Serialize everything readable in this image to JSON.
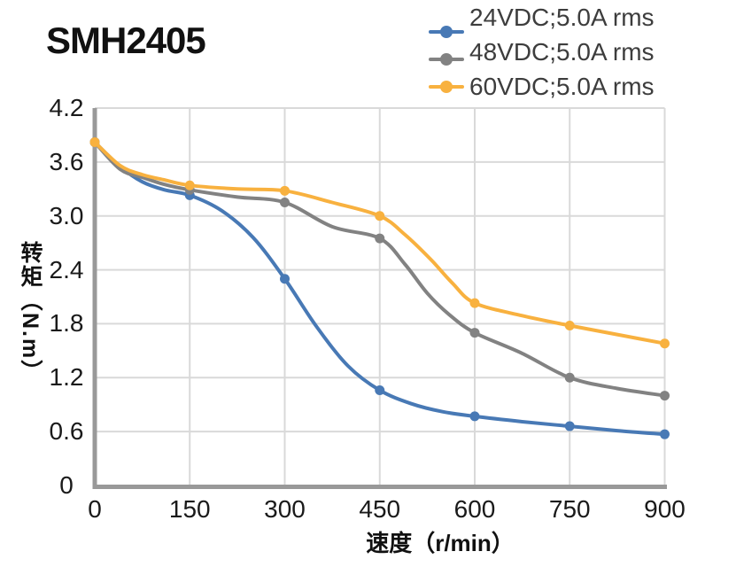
{
  "page": {
    "title": "SMH2405"
  },
  "chart_data": {
    "type": "line",
    "title": "SMH2405",
    "xlabel": "速度（r/min）",
    "ylabel": "转矩（N.m）",
    "xlim": [
      0,
      900
    ],
    "ylim": [
      0,
      4.2
    ],
    "grid": true,
    "legend_position": "top-right",
    "x_ticks": [
      0,
      150,
      300,
      450,
      600,
      750,
      900
    ],
    "y_ticks": [
      "0",
      "0.6",
      "1.2",
      "1.8",
      "2.4",
      "3.0",
      "3.6",
      "4.2"
    ],
    "x": [
      0,
      150,
      300,
      450,
      600,
      750,
      900
    ],
    "series": [
      {
        "name": "24VDC;5.0A rms",
        "color": "#4879B5",
        "values": [
          3.82,
          3.23,
          2.3,
          1.06,
          0.77,
          0.66,
          0.57
        ],
        "curve": [
          [
            0,
            3.82
          ],
          [
            40,
            3.55
          ],
          [
            75,
            3.38
          ],
          [
            110,
            3.29
          ],
          [
            150,
            3.23
          ],
          [
            200,
            3.06
          ],
          [
            250,
            2.76
          ],
          [
            300,
            2.3
          ],
          [
            350,
            1.77
          ],
          [
            400,
            1.33
          ],
          [
            450,
            1.06
          ],
          [
            500,
            0.91
          ],
          [
            550,
            0.82
          ],
          [
            600,
            0.77
          ],
          [
            675,
            0.71
          ],
          [
            750,
            0.66
          ],
          [
            825,
            0.61
          ],
          [
            900,
            0.57
          ]
        ]
      },
      {
        "name": "48VDC;5.0A rms",
        "color": "#828282",
        "values": [
          3.82,
          3.29,
          3.15,
          2.75,
          1.7,
          1.2,
          1.0
        ],
        "curve": [
          [
            0,
            3.82
          ],
          [
            40,
            3.52
          ],
          [
            75,
            3.43
          ],
          [
            110,
            3.35
          ],
          [
            150,
            3.29
          ],
          [
            225,
            3.21
          ],
          [
            300,
            3.15
          ],
          [
            375,
            2.88
          ],
          [
            450,
            2.75
          ],
          [
            490,
            2.46
          ],
          [
            525,
            2.14
          ],
          [
            560,
            1.9
          ],
          [
            600,
            1.7
          ],
          [
            675,
            1.47
          ],
          [
            750,
            1.2
          ],
          [
            825,
            1.08
          ],
          [
            900,
            1.0
          ]
        ]
      },
      {
        "name": "60VDC;5.0A rms",
        "color": "#F8B13F",
        "values": [
          3.82,
          3.34,
          3.28,
          3.0,
          2.03,
          1.78,
          1.58
        ],
        "curve": [
          [
            0,
            3.82
          ],
          [
            40,
            3.56
          ],
          [
            75,
            3.46
          ],
          [
            110,
            3.4
          ],
          [
            150,
            3.34
          ],
          [
            225,
            3.3
          ],
          [
            300,
            3.28
          ],
          [
            375,
            3.15
          ],
          [
            450,
            3.0
          ],
          [
            490,
            2.79
          ],
          [
            530,
            2.52
          ],
          [
            565,
            2.25
          ],
          [
            600,
            2.03
          ],
          [
            675,
            1.89
          ],
          [
            750,
            1.78
          ],
          [
            825,
            1.68
          ],
          [
            900,
            1.58
          ]
        ]
      }
    ],
    "colors": {
      "grid": "#D9D9D9",
      "axis": "#999999",
      "tick_text": "#1A1A1A",
      "legend_text": "#3D3D3D",
      "title_text": "#111111"
    }
  }
}
